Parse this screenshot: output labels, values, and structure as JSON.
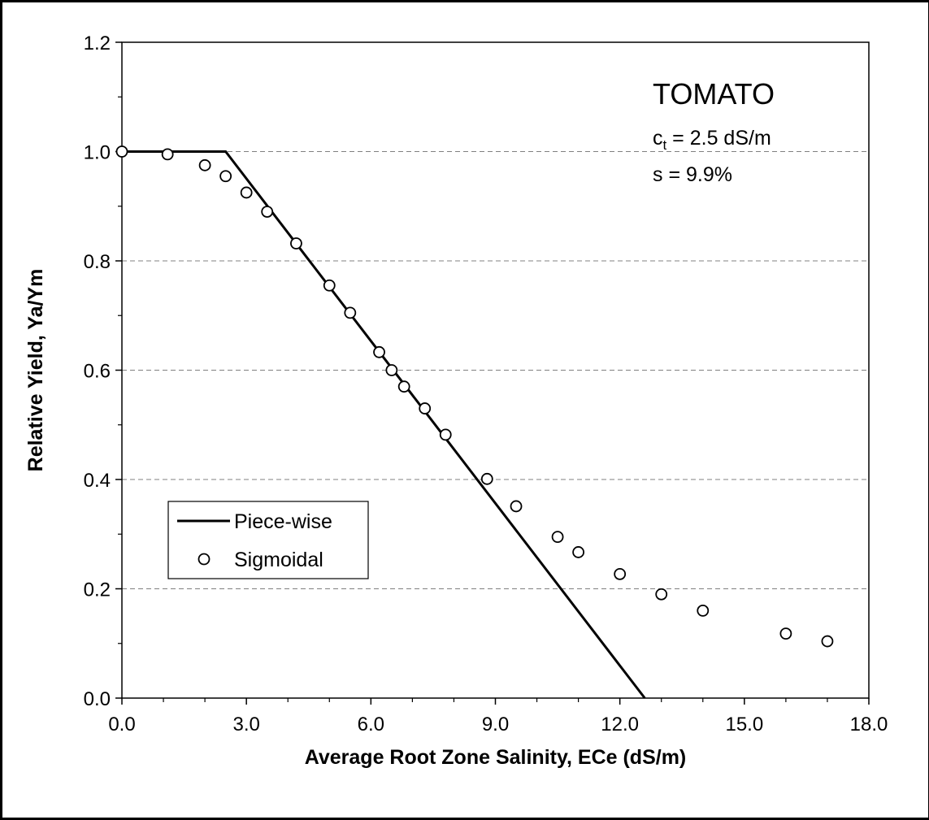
{
  "chart_data": {
    "type": "scatter",
    "title": "",
    "xlabel": "Average Root Zone Salinity, ECe (dS/m)",
    "ylabel": "Relative Yield, Ya/Ym",
    "xlim": [
      0,
      18
    ],
    "ylim": [
      0,
      1.2
    ],
    "x_ticks": [
      "0.0",
      "3.0",
      "6.0",
      "9.0",
      "12.0",
      "15.0",
      "18.0"
    ],
    "y_ticks": [
      "0.0",
      "0.2",
      "0.4",
      "0.6",
      "0.8",
      "1.0",
      "1.2"
    ],
    "grid": "horizontal dashed",
    "legend_position": "lower-left",
    "annotation": {
      "crop": "TOMATO",
      "threshold_symbol": "c",
      "threshold_subscript": "t",
      "threshold_value": " = 2.5 dS/m",
      "slope": "s = 9.9%"
    },
    "series": [
      {
        "name": "Piece-wise",
        "kind": "line",
        "color": "#000000",
        "x": [
          0,
          2.5,
          12.6
        ],
        "y": [
          1.0,
          1.0,
          0.0
        ]
      },
      {
        "name": "Sigmoidal",
        "kind": "scatter",
        "color": "#000000",
        "x": [
          0,
          1.1,
          2.0,
          2.5,
          3.0,
          3.5,
          4.2,
          5.0,
          5.5,
          6.2,
          6.5,
          6.8,
          7.3,
          7.8,
          8.8,
          9.5,
          10.5,
          11.0,
          12.0,
          13.0,
          14.0,
          16.0,
          17.0
        ],
        "y": [
          1.0,
          0.995,
          0.975,
          0.955,
          0.925,
          0.89,
          0.832,
          0.755,
          0.705,
          0.633,
          0.6,
          0.57,
          0.53,
          0.482,
          0.401,
          0.351,
          0.295,
          0.267,
          0.227,
          0.19,
          0.16,
          0.118,
          0.104
        ]
      }
    ]
  }
}
